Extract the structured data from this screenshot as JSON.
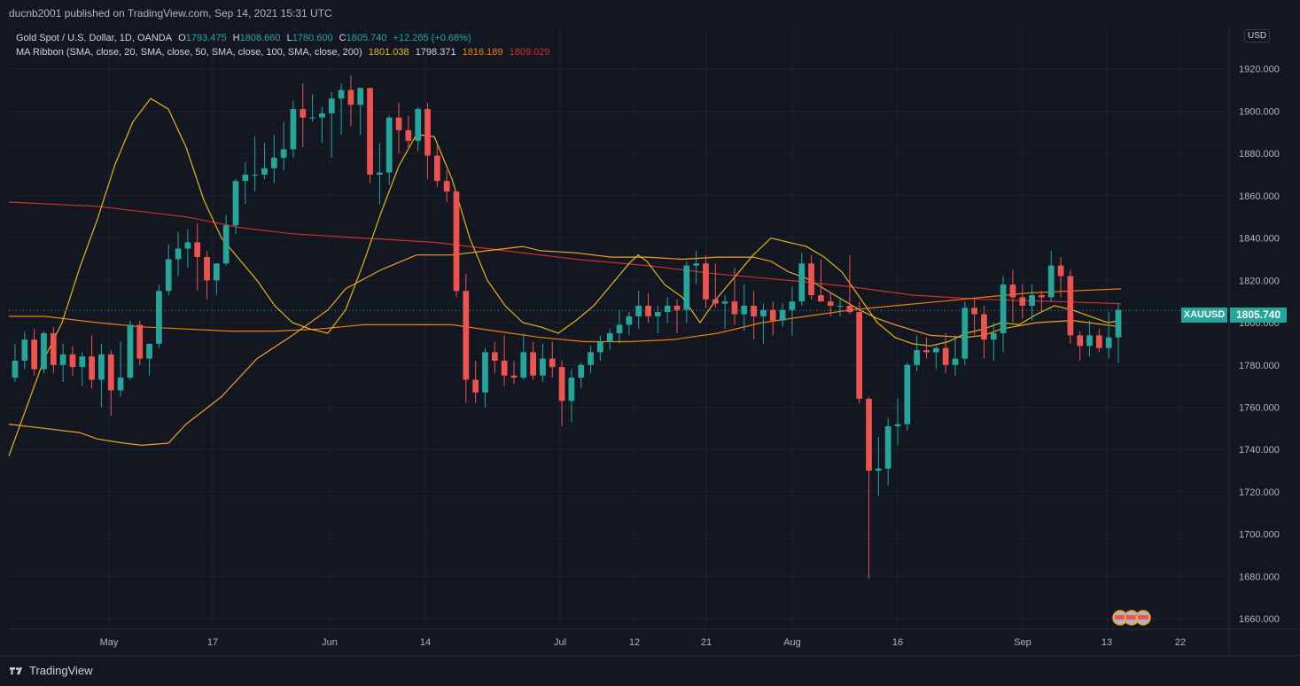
{
  "header": {
    "publisher": "ducnb2001 published on TradingView.com, Sep 14, 2021 15:31 UTC"
  },
  "legend": {
    "title": "Gold Spot / U.S. Dollar, 1D, OANDA",
    "o_label": "O",
    "o": "1793.475",
    "h_label": "H",
    "h": "1808.660",
    "l_label": "L",
    "l": "1780.600",
    "c_label": "C",
    "c": "1805.740",
    "change": "+12.265 (+0.68%)",
    "ma_title": "MA Ribbon (SMA, close, 20, SMA, close, 50, SMA, close, 100, SMA, close, 200)",
    "ma_values": [
      "1801.038",
      "1798.371",
      "1816.189",
      "1809.029"
    ]
  },
  "price_axis": {
    "currency": "USD",
    "symbol": "XAUUSD",
    "last_price": "1805.740"
  },
  "footer": {
    "brand": "TradingView"
  },
  "colors": {
    "up": "#26a69a",
    "down": "#ef5350",
    "ma20": "#e6b416",
    "ma50": "#f0a020",
    "ma100": "#f57c00",
    "ma200": "#d32f2f",
    "background": "#131722",
    "grid": "#1e222d"
  },
  "chart_data": {
    "type": "candlestick",
    "y_ticks": [
      "1660.000",
      "1680.000",
      "1700.000",
      "1720.000",
      "1740.000",
      "1760.000",
      "1780.000",
      "1800.000",
      "1820.000",
      "1840.000",
      "1860.000",
      "1880.000",
      "1900.000",
      "1920.000"
    ],
    "ylim": [
      1655,
      1940
    ],
    "x_ticks": [
      "May",
      "17",
      "Jun",
      "14",
      "Jul",
      "12",
      "21",
      "Aug",
      "16",
      "Sep",
      "13",
      "22"
    ],
    "candles": [
      [
        1774,
        1790,
        1772,
        1782
      ],
      [
        1782,
        1796,
        1778,
        1792
      ],
      [
        1792,
        1797,
        1775,
        1778
      ],
      [
        1778,
        1796,
        1776,
        1795
      ],
      [
        1795,
        1798,
        1776,
        1780
      ],
      [
        1780,
        1790,
        1772,
        1785
      ],
      [
        1785,
        1789,
        1775,
        1779
      ],
      [
        1779,
        1786,
        1770,
        1784
      ],
      [
        1784,
        1794,
        1769,
        1773
      ],
      [
        1773,
        1790,
        1760,
        1785
      ],
      [
        1785,
        1787,
        1756,
        1768
      ],
      [
        1768,
        1791,
        1765,
        1774
      ],
      [
        1774,
        1801,
        1773,
        1799
      ],
      [
        1799,
        1801,
        1780,
        1783
      ],
      [
        1783,
        1790,
        1775,
        1790
      ],
      [
        1790,
        1818,
        1788,
        1815
      ],
      [
        1815,
        1837,
        1813,
        1830
      ],
      [
        1830,
        1843,
        1822,
        1835
      ],
      [
        1835,
        1844,
        1826,
        1838
      ],
      [
        1838,
        1847,
        1815,
        1831
      ],
      [
        1831,
        1834,
        1811,
        1820
      ],
      [
        1820,
        1828,
        1813,
        1828
      ],
      [
        1828,
        1851,
        1827,
        1846
      ],
      [
        1846,
        1868,
        1842,
        1867
      ],
      [
        1867,
        1876,
        1856,
        1870
      ],
      [
        1870,
        1888,
        1862,
        1870
      ],
      [
        1870,
        1885,
        1868,
        1873
      ],
      [
        1873,
        1889,
        1866,
        1878
      ],
      [
        1878,
        1895,
        1872,
        1882
      ],
      [
        1882,
        1905,
        1878,
        1901
      ],
      [
        1901,
        1913,
        1883,
        1897
      ],
      [
        1897,
        1908,
        1895,
        1897
      ],
      [
        1897,
        1902,
        1885,
        1899
      ],
      [
        1899,
        1909,
        1878,
        1906
      ],
      [
        1906,
        1913,
        1889,
        1910
      ],
      [
        1910,
        1917,
        1893,
        1903
      ],
      [
        1903,
        1911,
        1889,
        1911
      ],
      [
        1911,
        1910,
        1866,
        1870
      ],
      [
        1870,
        1885,
        1856,
        1871
      ],
      [
        1871,
        1898,
        1865,
        1897
      ],
      [
        1897,
        1904,
        1880,
        1891
      ],
      [
        1891,
        1898,
        1882,
        1886
      ],
      [
        1886,
        1902,
        1881,
        1901
      ],
      [
        1901,
        1904,
        1868,
        1879
      ],
      [
        1879,
        1885,
        1864,
        1867
      ],
      [
        1867,
        1872,
        1857,
        1862
      ],
      [
        1862,
        1861,
        1812,
        1815
      ],
      [
        1815,
        1823,
        1762,
        1773
      ],
      [
        1773,
        1782,
        1762,
        1767
      ],
      [
        1767,
        1788,
        1760,
        1786
      ],
      [
        1786,
        1791,
        1776,
        1782
      ],
      [
        1782,
        1794,
        1770,
        1775
      ],
      [
        1775,
        1782,
        1771,
        1774
      ],
      [
        1774,
        1795,
        1773,
        1786
      ],
      [
        1786,
        1791,
        1773,
        1775
      ],
      [
        1775,
        1790,
        1772,
        1783
      ],
      [
        1783,
        1791,
        1774,
        1779
      ],
      [
        1779,
        1782,
        1751,
        1763
      ],
      [
        1763,
        1778,
        1753,
        1774
      ],
      [
        1774,
        1781,
        1769,
        1780
      ],
      [
        1780,
        1789,
        1776,
        1786
      ],
      [
        1786,
        1794,
        1782,
        1791
      ],
      [
        1791,
        1797,
        1787,
        1795
      ],
      [
        1795,
        1806,
        1790,
        1799
      ],
      [
        1799,
        1805,
        1794,
        1803
      ],
      [
        1803,
        1815,
        1797,
        1808
      ],
      [
        1808,
        1814,
        1800,
        1803
      ],
      [
        1803,
        1808,
        1795,
        1805
      ],
      [
        1805,
        1812,
        1800,
        1808
      ],
      [
        1808,
        1811,
        1795,
        1806
      ],
      [
        1806,
        1829,
        1800,
        1827
      ],
      [
        1827,
        1834,
        1818,
        1828
      ],
      [
        1828,
        1832,
        1807,
        1811
      ],
      [
        1811,
        1828,
        1807,
        1809
      ],
      [
        1809,
        1813,
        1797,
        1810
      ],
      [
        1810,
        1826,
        1799,
        1804
      ],
      [
        1804,
        1818,
        1796,
        1808
      ],
      [
        1808,
        1815,
        1792,
        1803
      ],
      [
        1803,
        1809,
        1790,
        1806
      ],
      [
        1806,
        1810,
        1794,
        1801
      ],
      [
        1801,
        1809,
        1798,
        1806
      ],
      [
        1806,
        1817,
        1794,
        1810
      ],
      [
        1810,
        1833,
        1808,
        1828
      ],
      [
        1828,
        1832,
        1811,
        1813
      ],
      [
        1813,
        1830,
        1812,
        1810
      ],
      [
        1810,
        1814,
        1803,
        1808
      ],
      [
        1808,
        1812,
        1803,
        1808
      ],
      [
        1808,
        1832,
        1804,
        1805
      ],
      [
        1805,
        1810,
        1762,
        1764
      ],
      [
        1764,
        1765,
        1679,
        1730
      ],
      [
        1730,
        1746,
        1718,
        1731
      ],
      [
        1731,
        1755,
        1723,
        1751
      ],
      [
        1751,
        1764,
        1742,
        1752
      ],
      [
        1752,
        1781,
        1749,
        1780
      ],
      [
        1780,
        1794,
        1777,
        1787
      ],
      [
        1787,
        1793,
        1783,
        1786
      ],
      [
        1786,
        1789,
        1778,
        1788
      ],
      [
        1788,
        1795,
        1776,
        1780
      ],
      [
        1780,
        1794,
        1775,
        1783
      ],
      [
        1783,
        1810,
        1780,
        1807
      ],
      [
        1807,
        1812,
        1794,
        1804
      ],
      [
        1804,
        1808,
        1783,
        1792
      ],
      [
        1792,
        1800,
        1782,
        1795
      ],
      [
        1795,
        1822,
        1786,
        1818
      ],
      [
        1818,
        1825,
        1800,
        1812
      ],
      [
        1812,
        1818,
        1802,
        1808
      ],
      [
        1808,
        1818,
        1801,
        1813
      ],
      [
        1813,
        1815,
        1805,
        1812
      ],
      [
        1812,
        1834,
        1810,
        1827
      ],
      [
        1827,
        1831,
        1812,
        1822
      ],
      [
        1822,
        1825,
        1790,
        1794
      ],
      [
        1794,
        1796,
        1782,
        1789
      ],
      [
        1789,
        1801,
        1784,
        1794
      ],
      [
        1794,
        1797,
        1786,
        1788
      ],
      [
        1788,
        1805,
        1783,
        1793
      ],
      [
        1793,
        1809,
        1781,
        1806
      ]
    ],
    "ma20": [
      [
        0,
        1737
      ],
      [
        20,
        1760
      ],
      [
        40,
        1783
      ],
      [
        60,
        1800
      ],
      [
        80,
        1826
      ],
      [
        100,
        1849
      ],
      [
        120,
        1875
      ],
      [
        140,
        1895
      ],
      [
        160,
        1906
      ],
      [
        180,
        1901
      ],
      [
        200,
        1883
      ],
      [
        220,
        1858
      ],
      [
        240,
        1840
      ],
      [
        260,
        1830
      ],
      [
        280,
        1820
      ],
      [
        300,
        1808
      ],
      [
        320,
        1800
      ],
      [
        340,
        1797
      ],
      [
        360,
        1795
      ],
      [
        380,
        1806
      ],
      [
        400,
        1828
      ],
      [
        420,
        1852
      ],
      [
        440,
        1874
      ],
      [
        460,
        1889
      ],
      [
        480,
        1888
      ],
      [
        500,
        1868
      ],
      [
        520,
        1840
      ],
      [
        540,
        1820
      ],
      [
        560,
        1808
      ],
      [
        580,
        1800
      ],
      [
        600,
        1798
      ],
      [
        620,
        1795
      ],
      [
        640,
        1801
      ],
      [
        660,
        1808
      ],
      [
        680,
        1818
      ],
      [
        700,
        1828
      ],
      [
        710,
        1832
      ],
      [
        720,
        1829
      ],
      [
        740,
        1818
      ],
      [
        760,
        1812
      ],
      [
        780,
        1800
      ],
      [
        800,
        1812
      ],
      [
        820,
        1822
      ],
      [
        840,
        1832
      ],
      [
        860,
        1840
      ],
      [
        880,
        1838
      ],
      [
        900,
        1836
      ],
      [
        920,
        1831
      ],
      [
        940,
        1824
      ],
      [
        960,
        1812
      ],
      [
        980,
        1800
      ],
      [
        1000,
        1793
      ],
      [
        1020,
        1790
      ],
      [
        1040,
        1789
      ],
      [
        1060,
        1791
      ],
      [
        1080,
        1795
      ],
      [
        1100,
        1797
      ],
      [
        1120,
        1800
      ],
      [
        1140,
        1799
      ],
      [
        1160,
        1804
      ],
      [
        1180,
        1808
      ],
      [
        1200,
        1806
      ],
      [
        1220,
        1803
      ],
      [
        1240,
        1800
      ],
      [
        1255,
        1801
      ]
    ],
    "ma50": [
      [
        0,
        1752
      ],
      [
        40,
        1750
      ],
      [
        80,
        1748
      ],
      [
        100,
        1745
      ],
      [
        130,
        1743
      ],
      [
        150,
        1742
      ],
      [
        180,
        1743
      ],
      [
        200,
        1752
      ],
      [
        240,
        1765
      ],
      [
        280,
        1783
      ],
      [
        320,
        1794
      ],
      [
        360,
        1806
      ],
      [
        380,
        1816
      ],
      [
        420,
        1825
      ],
      [
        460,
        1832
      ],
      [
        500,
        1832
      ],
      [
        540,
        1834
      ],
      [
        580,
        1836
      ],
      [
        600,
        1834
      ],
      [
        640,
        1833
      ],
      [
        680,
        1831
      ],
      [
        720,
        1831
      ],
      [
        760,
        1830
      ],
      [
        800,
        1831
      ],
      [
        840,
        1831
      ],
      [
        860,
        1829
      ],
      [
        880,
        1824
      ],
      [
        900,
        1821
      ],
      [
        920,
        1816
      ],
      [
        940,
        1811
      ],
      [
        960,
        1806
      ],
      [
        980,
        1802
      ],
      [
        1000,
        1799
      ],
      [
        1040,
        1794
      ],
      [
        1080,
        1793
      ],
      [
        1100,
        1794
      ],
      [
        1120,
        1797
      ],
      [
        1160,
        1800
      ],
      [
        1200,
        1801
      ],
      [
        1255,
        1798
      ]
    ],
    "ma100": [
      [
        0,
        1803
      ],
      [
        40,
        1803
      ],
      [
        100,
        1800
      ],
      [
        150,
        1798
      ],
      [
        200,
        1797
      ],
      [
        250,
        1796
      ],
      [
        300,
        1796
      ],
      [
        350,
        1797
      ],
      [
        400,
        1799
      ],
      [
        450,
        1799
      ],
      [
        500,
        1799
      ],
      [
        550,
        1796
      ],
      [
        600,
        1793
      ],
      [
        650,
        1791
      ],
      [
        700,
        1791
      ],
      [
        750,
        1792
      ],
      [
        800,
        1795
      ],
      [
        850,
        1800
      ],
      [
        900,
        1803
      ],
      [
        950,
        1806
      ],
      [
        1000,
        1808
      ],
      [
        1050,
        1810
      ],
      [
        1100,
        1812
      ],
      [
        1150,
        1814
      ],
      [
        1200,
        1815
      ],
      [
        1255,
        1816
      ]
    ],
    "ma200": [
      [
        0,
        1857
      ],
      [
        100,
        1855
      ],
      [
        200,
        1850
      ],
      [
        260,
        1845
      ],
      [
        320,
        1842
      ],
      [
        400,
        1840
      ],
      [
        480,
        1838
      ],
      [
        560,
        1834
      ],
      [
        640,
        1830
      ],
      [
        720,
        1827
      ],
      [
        800,
        1823
      ],
      [
        880,
        1820
      ],
      [
        950,
        1817
      ],
      [
        1020,
        1813
      ],
      [
        1100,
        1811
      ],
      [
        1180,
        1810
      ],
      [
        1255,
        1809
      ]
    ],
    "last_price": 1805.74
  }
}
